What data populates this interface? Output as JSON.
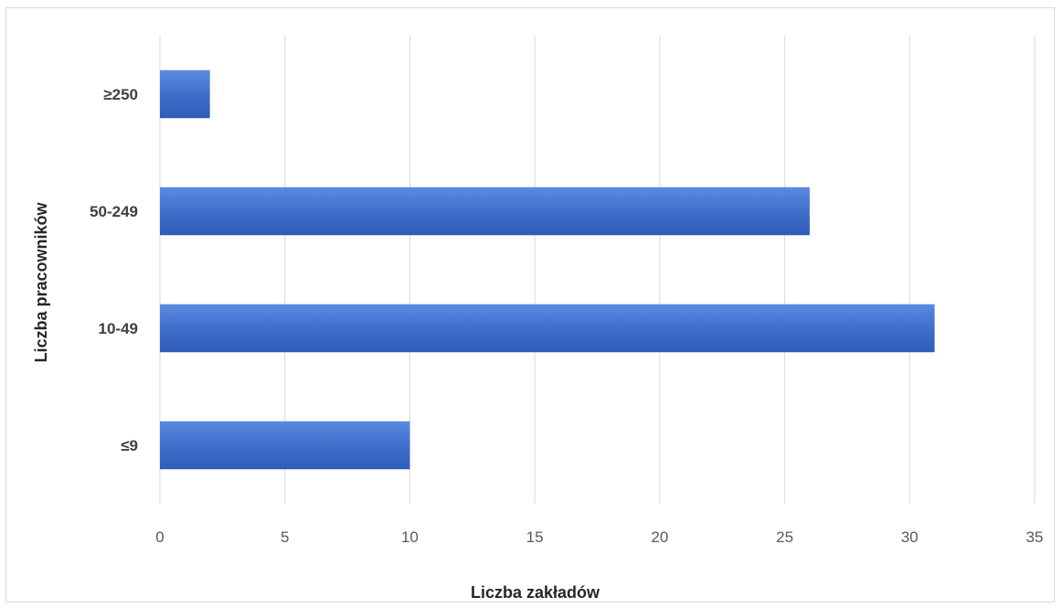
{
  "chart_data": {
    "type": "bar",
    "orientation": "horizontal",
    "categories": [
      "≤9",
      "10-49",
      "50-249",
      "≥250"
    ],
    "values": [
      10,
      31,
      26,
      2
    ],
    "xlabel": "Liczba zakładów",
    "ylabel": "Liczba pracowników",
    "xlim": [
      0,
      35
    ],
    "xticks": [
      "0",
      "5",
      "10",
      "15",
      "20",
      "25",
      "30",
      "35"
    ],
    "grid": true,
    "legend": "none",
    "bar_color": "#4472C4"
  }
}
